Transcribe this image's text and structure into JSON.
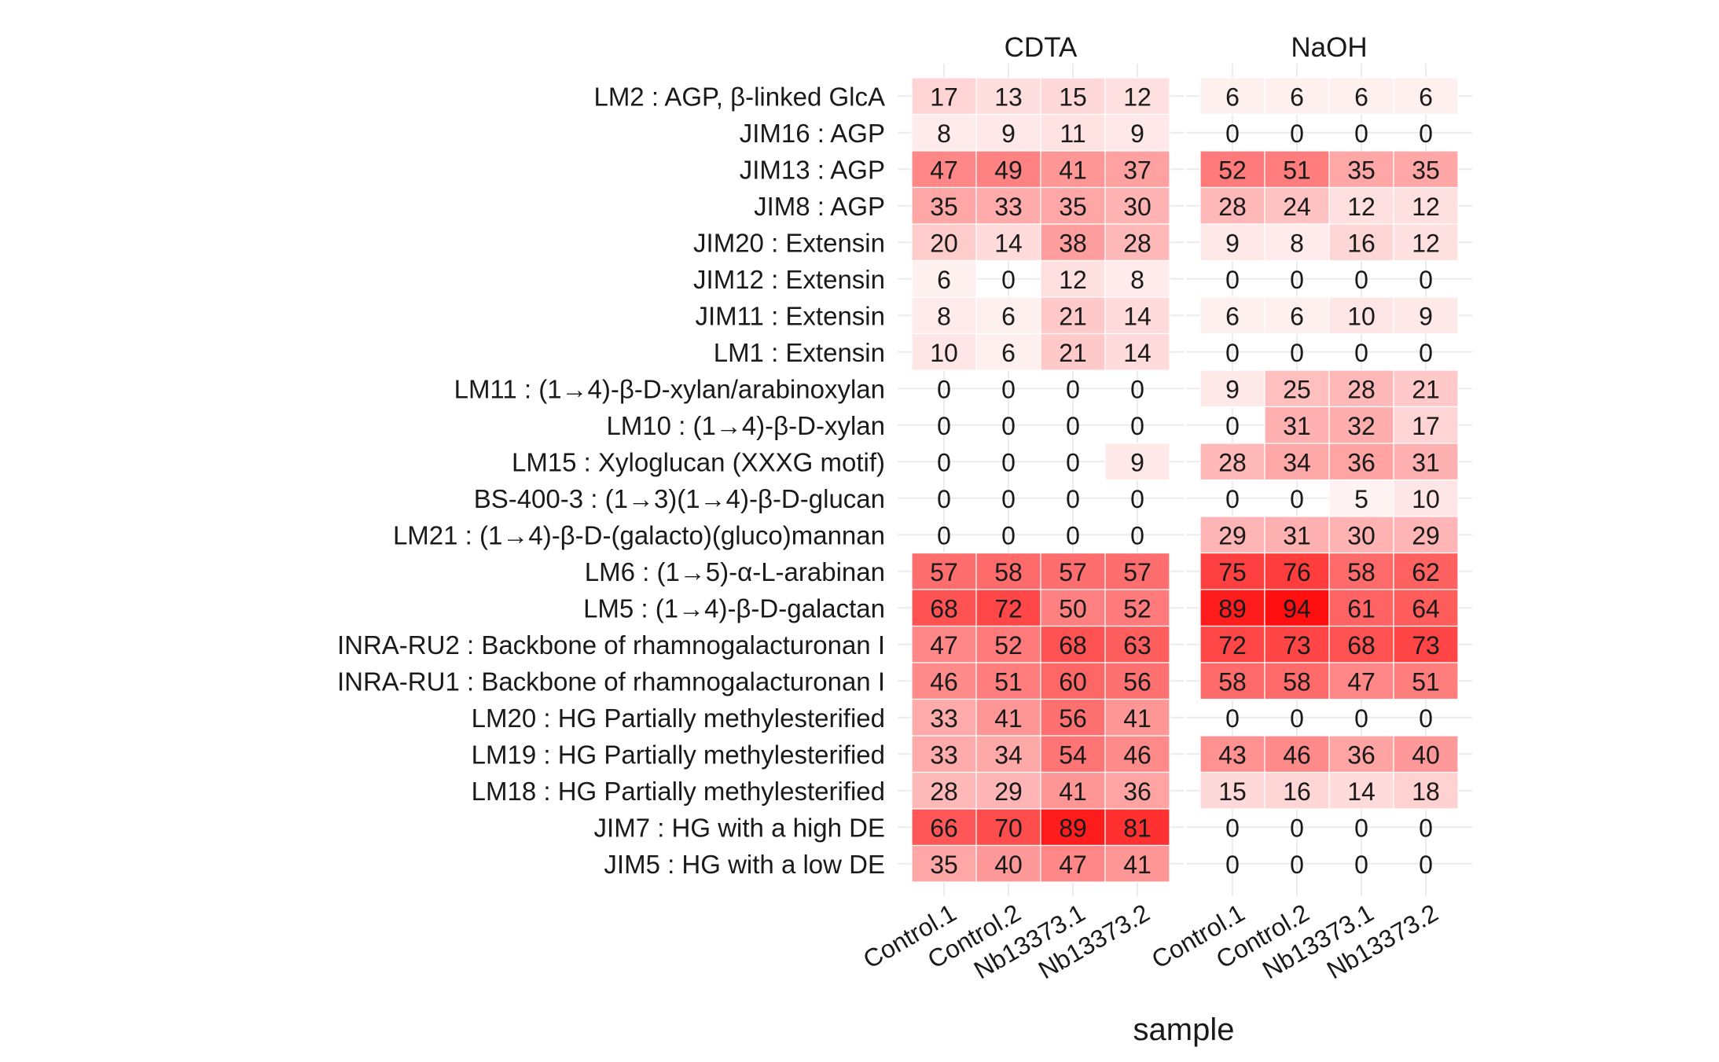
{
  "chart_data": {
    "type": "heatmap",
    "xlabel": "sample",
    "panels": [
      "CDTA",
      "NaOH"
    ],
    "samples": [
      "Control.1",
      "Control.2",
      "Nb13373.1",
      "Nb13373.2"
    ],
    "rows": [
      "LM2 : AGP, β-linked GlcA",
      "JIM16 : AGP",
      "JIM13 : AGP",
      "JIM8 : AGP",
      "JIM20 : Extensin",
      "JIM12 : Extensin",
      "JIM11 : Extensin",
      "LM1 : Extensin",
      "LM11 : (1→4)-β-D-xylan/arabinoxylan",
      "LM10 : (1→4)-β-D-xylan",
      "LM15 : Xyloglucan (XXXG motif)",
      "BS-400-3 : (1→3)(1→4)-β-D-glucan",
      "LM21 : (1→4)-β-D-(galacto)(gluco)mannan",
      "LM6 : (1→5)-α-L-arabinan",
      "LM5 : (1→4)-β-D-galactan",
      "INRA-RU2 : Backbone of rhamnogalacturonan I",
      "INRA-RU1 : Backbone of rhamnogalacturonan I",
      "LM20 : HG Partially methylesterified",
      "LM19 : HG Partially methylesterified",
      "LM18 : HG Partially methylesterified",
      "JIM7 : HG with a high DE",
      "JIM5 : HG with a low DE"
    ],
    "values": {
      "CDTA": [
        [
          17,
          13,
          15,
          12
        ],
        [
          8,
          9,
          11,
          9
        ],
        [
          47,
          49,
          41,
          37
        ],
        [
          35,
          33,
          35,
          30
        ],
        [
          20,
          14,
          38,
          28
        ],
        [
          6,
          0,
          12,
          8
        ],
        [
          8,
          6,
          21,
          14
        ],
        [
          10,
          6,
          21,
          14
        ],
        [
          0,
          0,
          0,
          0
        ],
        [
          0,
          0,
          0,
          0
        ],
        [
          0,
          0,
          0,
          9
        ],
        [
          0,
          0,
          0,
          0
        ],
        [
          0,
          0,
          0,
          0
        ],
        [
          57,
          58,
          57,
          57
        ],
        [
          68,
          72,
          50,
          52
        ],
        [
          47,
          52,
          68,
          63
        ],
        [
          46,
          51,
          60,
          56
        ],
        [
          33,
          41,
          56,
          41
        ],
        [
          33,
          34,
          54,
          46
        ],
        [
          28,
          29,
          41,
          36
        ],
        [
          66,
          70,
          89,
          81
        ],
        [
          35,
          40,
          47,
          41
        ]
      ],
      "NaOH": [
        [
          6,
          6,
          6,
          6
        ],
        [
          0,
          0,
          0,
          0
        ],
        [
          52,
          51,
          35,
          35
        ],
        [
          28,
          24,
          12,
          12
        ],
        [
          9,
          8,
          16,
          12
        ],
        [
          0,
          0,
          0,
          0
        ],
        [
          6,
          6,
          10,
          9
        ],
        [
          0,
          0,
          0,
          0
        ],
        [
          9,
          25,
          28,
          21
        ],
        [
          0,
          31,
          32,
          17
        ],
        [
          28,
          34,
          36,
          31
        ],
        [
          0,
          0,
          5,
          10
        ],
        [
          29,
          31,
          30,
          29
        ],
        [
          75,
          76,
          58,
          62
        ],
        [
          89,
          94,
          61,
          64
        ],
        [
          72,
          73,
          68,
          73
        ],
        [
          58,
          58,
          47,
          51
        ],
        [
          0,
          0,
          0,
          0
        ],
        [
          43,
          46,
          36,
          40
        ],
        [
          15,
          16,
          14,
          18
        ],
        [
          0,
          0,
          0,
          0
        ],
        [
          0,
          0,
          0,
          0
        ]
      ]
    },
    "color_scale": {
      "low": "#ffffff",
      "high": "#ff0000",
      "range": [
        0,
        100
      ]
    },
    "legend": "none",
    "grid": true
  }
}
